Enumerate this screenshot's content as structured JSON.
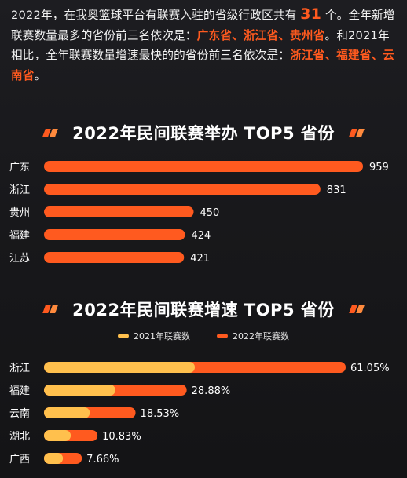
{
  "intro": {
    "p1": "2022年，在我奥篮球平台有联赛入驻的省级行政区共有",
    "count": "31",
    "p2": "个。全年新增联赛数量最多的省份前三名依次是：",
    "top_new": "广东省、浙江省、贵州省",
    "p3": "。和2021年相比，全年联赛数量增速最快的的省份前三名依次是：",
    "top_growth": "浙江省、福建省、云南省",
    "p4": "。"
  },
  "colors": {
    "accent": "#ff5a1f",
    "bar_2022": "#ff5a1f",
    "bar_2021": "#ffc04d",
    "background": "#1a1a1d"
  },
  "chart_data": [
    {
      "type": "bar",
      "orientation": "horizontal",
      "title": "2022年民间联赛举办 TOP5 省份",
      "categories": [
        "广东",
        "浙江",
        "贵州",
        "福建",
        "江苏"
      ],
      "values": [
        959,
        831,
        450,
        424,
        421
      ],
      "value_labels": [
        "959",
        "831",
        "450",
        "424",
        "421"
      ],
      "xlim": [
        0,
        959
      ]
    },
    {
      "type": "bar",
      "orientation": "horizontal",
      "title": "2022年民间联赛增速 TOP5 省份",
      "categories": [
        "浙江",
        "福建",
        "云南",
        "湖北",
        "广西"
      ],
      "series": [
        {
          "name": "2021年联赛数",
          "values": [
            0.5,
            0.5,
            0.5,
            0.5,
            0.5
          ]
        },
        {
          "name": "2022年联赛数",
          "values": [
            1,
            1,
            1,
            1,
            1
          ]
        }
      ],
      "growth": [
        61.05,
        28.88,
        18.53,
        10.83,
        7.66
      ],
      "value_labels": [
        "61.05%",
        "28.88%",
        "18.53%",
        "10.83%",
        "7.66%"
      ],
      "xlim": [
        0,
        61.05
      ],
      "legend_position": "top-center"
    }
  ]
}
